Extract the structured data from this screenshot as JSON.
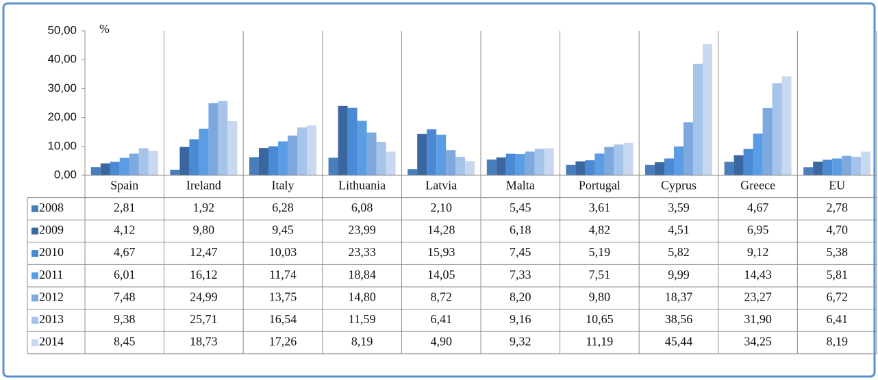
{
  "chart_data": {
    "type": "bar",
    "y_label": "%",
    "categories": [
      "Spain",
      "Ireland",
      "Italy",
      "Lithuania",
      "Latvia",
      "Malta",
      "Portugal",
      "Cyprus",
      "Greece",
      "EU"
    ],
    "ylim": [
      0,
      50
    ],
    "yticks": [
      {
        "value": 0,
        "label": "0,00"
      },
      {
        "value": 10,
        "label": "10,00"
      },
      {
        "value": 20,
        "label": "20,00"
      },
      {
        "value": 30,
        "label": "30,00"
      },
      {
        "value": 40,
        "label": "40,00"
      },
      {
        "value": 50,
        "label": "50,00"
      }
    ],
    "series": [
      {
        "name": "2008",
        "color": "#4a7ebb",
        "values": [
          2.81,
          1.92,
          6.28,
          6.08,
          2.1,
          5.45,
          3.61,
          3.59,
          4.67,
          2.78
        ],
        "value_labels": [
          "2,81",
          "1,92",
          "6,28",
          "6,08",
          "2,10",
          "5,45",
          "3,61",
          "3,59",
          "4,67",
          "2,78"
        ]
      },
      {
        "name": "2009",
        "color": "#3a679f",
        "values": [
          4.12,
          9.8,
          9.45,
          23.99,
          14.28,
          6.18,
          4.82,
          4.51,
          6.95,
          4.7
        ],
        "value_labels": [
          "4,12",
          "9,80",
          "9,45",
          "23,99",
          "14,28",
          "6,18",
          "4,82",
          "4,51",
          "6,95",
          "4,70"
        ]
      },
      {
        "name": "2010",
        "color": "#4a89d4",
        "values": [
          4.67,
          12.47,
          10.03,
          23.33,
          15.93,
          7.45,
          5.19,
          5.82,
          9.12,
          5.38
        ],
        "value_labels": [
          "4,67",
          "12,47",
          "10,03",
          "23,33",
          "15,93",
          "7,45",
          "5,19",
          "5,82",
          "9,12",
          "5,38"
        ]
      },
      {
        "name": "2011",
        "color": "#5a9de4",
        "values": [
          6.01,
          16.12,
          11.74,
          18.84,
          14.05,
          7.33,
          7.51,
          9.99,
          14.43,
          5.81
        ],
        "value_labels": [
          "6,01",
          "16,12",
          "11,74",
          "18,84",
          "14,05",
          "7,33",
          "7,51",
          "9,99",
          "14,43",
          "5,81"
        ]
      },
      {
        "name": "2012",
        "color": "#7ea9de",
        "values": [
          7.48,
          24.99,
          13.75,
          14.8,
          8.72,
          8.2,
          9.8,
          18.37,
          23.27,
          6.72
        ],
        "value_labels": [
          "7,48",
          "24,99",
          "13,75",
          "14,80",
          "8,72",
          "8,20",
          "9,80",
          "18,37",
          "23,27",
          "6,72"
        ]
      },
      {
        "name": "2013",
        "color": "#a6c3ea",
        "values": [
          9.38,
          25.71,
          16.54,
          11.59,
          6.41,
          9.16,
          10.65,
          38.56,
          31.9,
          6.41
        ],
        "value_labels": [
          "9,38",
          "25,71",
          "16,54",
          "11,59",
          "6,41",
          "9,16",
          "10,65",
          "38,56",
          "31,90",
          "6,41"
        ]
      },
      {
        "name": "2014",
        "color": "#c8d8f0",
        "values": [
          8.45,
          18.73,
          17.26,
          8.19,
          4.9,
          9.32,
          11.19,
          45.44,
          34.25,
          8.19
        ],
        "value_labels": [
          "8,45",
          "18,73",
          "17,26",
          "8,19",
          "4,90",
          "9,32",
          "11,19",
          "45,44",
          "34,25",
          "8,19"
        ]
      }
    ]
  }
}
